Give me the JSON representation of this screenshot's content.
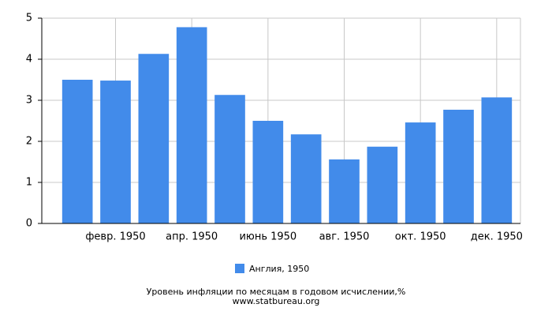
{
  "chart_data": {
    "type": "bar",
    "title": "Уровень инфляции по месяцам в годовом исчислении,%",
    "subtitle": "www.statbureau.org",
    "categories": [
      null,
      "февр. 1950",
      null,
      "апр. 1950",
      null,
      "июнь 1950",
      null,
      "авг. 1950",
      null,
      "окт. 1950",
      null,
      "дек. 1950"
    ],
    "series": [
      {
        "name": "Англия, 1950",
        "color": "#428bea",
        "values": [
          3.5,
          3.48,
          4.13,
          4.78,
          3.13,
          2.5,
          2.17,
          1.56,
          1.87,
          2.46,
          2.77,
          3.07
        ]
      }
    ],
    "ylim": [
      0,
      5
    ],
    "yticks": [
      0,
      1,
      2,
      3,
      4,
      5
    ],
    "grid": true
  }
}
